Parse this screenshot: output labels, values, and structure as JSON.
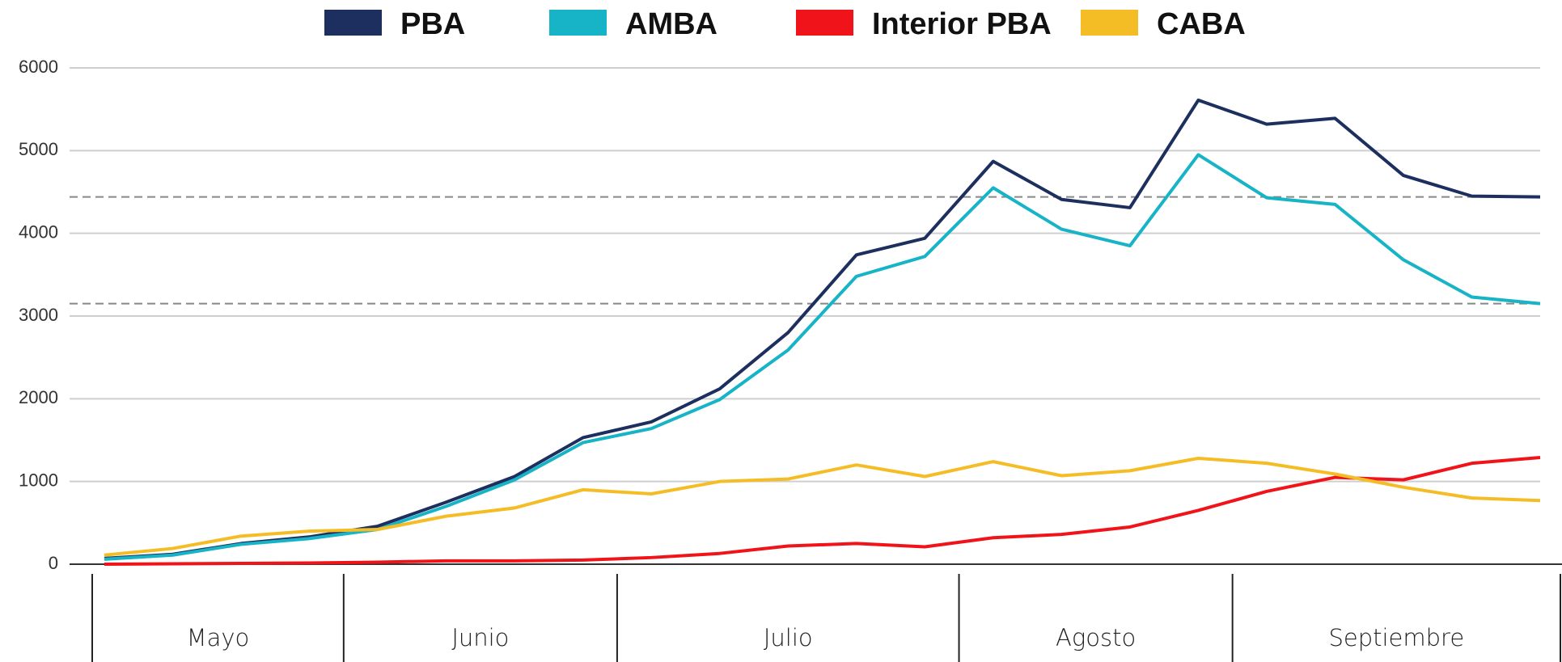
{
  "chart_data": {
    "type": "line",
    "categories": [
      null,
      null,
      null,
      null,
      null,
      null,
      null,
      null,
      null,
      null,
      null,
      null,
      null,
      null,
      null,
      null,
      null,
      null,
      null,
      null,
      null,
      null
    ],
    "groups": [
      {
        "label": "Mayo",
        "span": 4
      },
      {
        "label": "Junio",
        "span": 4
      },
      {
        "label": "Julio",
        "span": 5
      },
      {
        "label": "Agosto",
        "span": 4
      },
      {
        "label": "Septiembre",
        "span": 5
      }
    ],
    "series": [
      {
        "name": "PBA",
        "color": "#1d2f5e",
        "values": [
          70,
          120,
          250,
          330,
          460,
          750,
          1060,
          1530,
          1720,
          2120,
          2800,
          3740,
          3940,
          4870,
          4410,
          4310,
          5610,
          5320,
          5390,
          4700,
          4450,
          4440
        ]
      },
      {
        "name": "AMBA",
        "color": "#17b3c6",
        "values": [
          60,
          110,
          240,
          310,
          420,
          700,
          1020,
          1470,
          1640,
          1990,
          2590,
          3480,
          3720,
          4550,
          4050,
          3850,
          4950,
          4430,
          4350,
          3680,
          3230,
          3150
        ]
      },
      {
        "name": "Interior PBA",
        "color": "#f0141a",
        "values": [
          0,
          5,
          10,
          15,
          25,
          40,
          40,
          50,
          80,
          130,
          220,
          250,
          210,
          320,
          360,
          450,
          650,
          880,
          1050,
          1020,
          1220,
          1290
        ]
      },
      {
        "name": "CABA",
        "color": "#f5bd25",
        "values": [
          110,
          190,
          340,
          400,
          420,
          580,
          680,
          900,
          850,
          1000,
          1030,
          1200,
          1060,
          1240,
          1070,
          1130,
          1280,
          1220,
          1090,
          930,
          800,
          770
        ]
      }
    ],
    "hlines": [
      4440,
      3150
    ],
    "ylim": [
      0,
      6000
    ],
    "yticks": [
      0,
      1000,
      2000,
      3000,
      4000,
      5000,
      6000
    ],
    "grid": true,
    "legend": "top"
  }
}
